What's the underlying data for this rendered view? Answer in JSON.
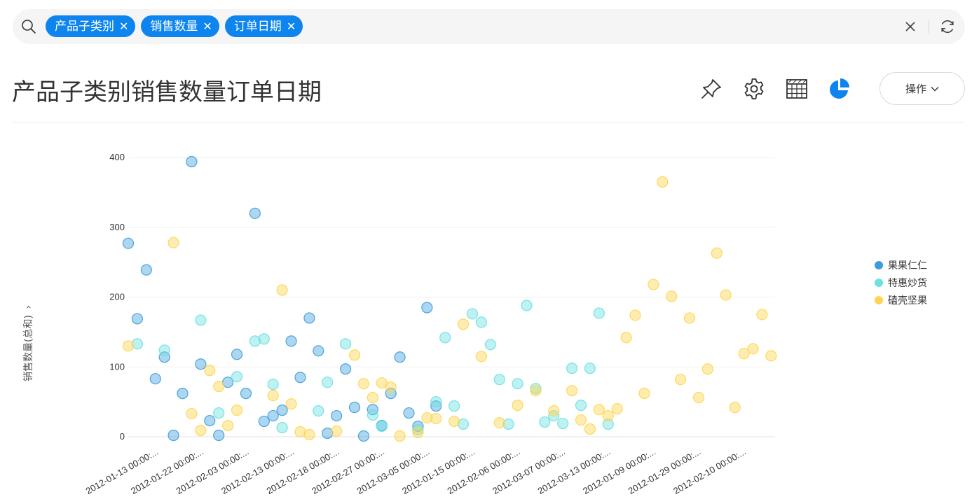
{
  "search": {
    "chips": [
      {
        "label": "产品子类别"
      },
      {
        "label": "销售数量"
      },
      {
        "label": "订单日期"
      }
    ],
    "chip_close_glyph": "✕"
  },
  "header": {
    "title": "产品子类别销售数量订单日期",
    "op_button_label": "操作",
    "op_chevron": "⌄"
  },
  "axis": {
    "ylabel": "销售数量(总和)",
    "ylabel_chevron": "›"
  },
  "colors": {
    "chip": "#0d84ee",
    "series": [
      "#3b9ddb",
      "#6ee0e0",
      "#ffd54f"
    ]
  },
  "chart_data": {
    "type": "scatter",
    "ylabel": "销售数量(总和)",
    "ylim": [
      0,
      400
    ],
    "yticks": [
      0,
      100,
      200,
      300,
      400
    ],
    "grid": true,
    "legend_position": "right",
    "x_categories": [
      "2012-01-13 00:00:...",
      "2012-01-22 00:00:...",
      "2012-02-03 00:00:...",
      "2012-02-13 00:00:...",
      "2012-02-18 00:00:...",
      "2012-02-27 00:00:...",
      "2012-03-05 00:00:...",
      "2012-01-15 00:00:...",
      "2012-02-06 00:00:...",
      "2012-03-07 00:00:...",
      "2012-03-13 00:00:...",
      "2012-01-09 00:00:...",
      "2012-01-29 00:00:...",
      "2012-02-10 00:00:..."
    ],
    "series": [
      {
        "name": "果果仁仁",
        "color": "#3b9ddb",
        "points": [
          [
            0,
            277
          ],
          [
            1,
            169
          ],
          [
            2,
            239
          ],
          [
            3,
            83
          ],
          [
            4,
            114
          ],
          [
            5,
            2
          ],
          [
            6,
            62
          ],
          [
            7,
            394
          ],
          [
            8,
            104
          ],
          [
            9,
            23
          ],
          [
            10,
            2
          ],
          [
            11,
            78
          ],
          [
            12,
            118
          ],
          [
            13,
            62
          ],
          [
            14,
            320
          ],
          [
            15,
            22
          ],
          [
            16,
            30
          ],
          [
            17,
            38
          ],
          [
            18,
            137
          ],
          [
            19,
            85
          ],
          [
            20,
            170
          ],
          [
            21,
            123
          ],
          [
            22,
            5
          ],
          [
            23,
            30
          ],
          [
            24,
            97
          ],
          [
            25,
            42
          ],
          [
            26,
            1
          ],
          [
            27,
            39
          ],
          [
            28,
            16
          ],
          [
            29,
            62
          ],
          [
            30,
            114
          ],
          [
            31,
            34
          ],
          [
            32,
            15
          ],
          [
            33,
            185
          ],
          [
            34,
            44
          ]
        ]
      },
      {
        "name": "特惠炒货",
        "color": "#6ee0e0",
        "points": [
          [
            1,
            133
          ],
          [
            4,
            124
          ],
          [
            8,
            167
          ],
          [
            10,
            34
          ],
          [
            12,
            86
          ],
          [
            14,
            137
          ],
          [
            15,
            140
          ],
          [
            16,
            75
          ],
          [
            17,
            13
          ],
          [
            21,
            37
          ],
          [
            22,
            78
          ],
          [
            24,
            133
          ],
          [
            27,
            31
          ],
          [
            28,
            15
          ],
          [
            32,
            10
          ],
          [
            34,
            50
          ],
          [
            35,
            142
          ],
          [
            36,
            44
          ],
          [
            37,
            18
          ],
          [
            38,
            176
          ],
          [
            39,
            164
          ],
          [
            40,
            132
          ],
          [
            41,
            82
          ],
          [
            42,
            18
          ],
          [
            43,
            76
          ],
          [
            44,
            188
          ],
          [
            45,
            69
          ],
          [
            46,
            21
          ],
          [
            47,
            30
          ],
          [
            48,
            19
          ],
          [
            49,
            98
          ],
          [
            50,
            45
          ],
          [
            51,
            98
          ],
          [
            52,
            177
          ],
          [
            53,
            18
          ]
        ]
      },
      {
        "name": "磕壳坚果",
        "color": "#ffd54f",
        "points": [
          [
            0,
            130
          ],
          [
            5,
            278
          ],
          [
            7,
            33
          ],
          [
            8,
            9
          ],
          [
            9,
            95
          ],
          [
            10,
            72
          ],
          [
            11,
            16
          ],
          [
            12,
            38
          ],
          [
            16,
            59
          ],
          [
            17,
            210
          ],
          [
            18,
            47
          ],
          [
            19,
            7
          ],
          [
            20,
            3
          ],
          [
            23,
            8
          ],
          [
            25,
            117
          ],
          [
            26,
            76
          ],
          [
            27,
            56
          ],
          [
            28,
            77
          ],
          [
            29,
            71
          ],
          [
            30,
            1
          ],
          [
            32,
            6
          ],
          [
            33,
            27
          ],
          [
            34,
            26
          ],
          [
            36,
            22
          ],
          [
            37,
            161
          ],
          [
            39,
            115
          ],
          [
            41,
            20
          ],
          [
            43,
            45
          ],
          [
            45,
            66
          ],
          [
            47,
            37
          ],
          [
            49,
            66
          ],
          [
            50,
            24
          ],
          [
            51,
            11
          ],
          [
            52,
            39
          ],
          [
            53,
            30
          ],
          [
            54,
            40
          ],
          [
            55,
            142
          ],
          [
            56,
            174
          ],
          [
            57,
            62
          ],
          [
            58,
            218
          ],
          [
            59,
            365
          ],
          [
            60,
            201
          ],
          [
            61,
            82
          ],
          [
            62,
            170
          ],
          [
            63,
            56
          ],
          [
            64,
            97
          ],
          [
            65,
            263
          ],
          [
            66,
            203
          ],
          [
            67,
            42
          ],
          [
            68,
            119
          ],
          [
            69,
            126
          ],
          [
            70,
            175
          ],
          [
            71,
            116
          ]
        ]
      }
    ]
  }
}
